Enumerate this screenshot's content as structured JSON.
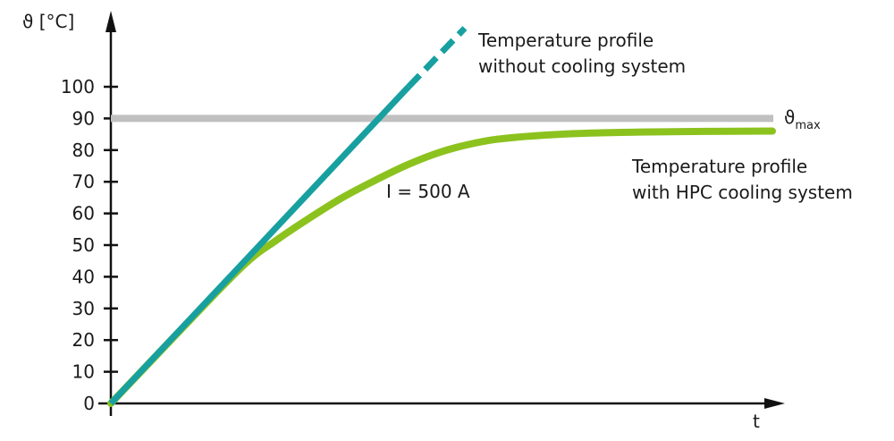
{
  "chart_data": {
    "type": "line",
    "title": "",
    "ylabel": "ϑ [°C]",
    "xlabel": "t",
    "ylim": [
      0,
      100
    ],
    "yticks": [
      "0",
      "10",
      "20",
      "30",
      "40",
      "50",
      "60",
      "70",
      "80",
      "90",
      "100"
    ],
    "xlim": [
      0,
      100
    ],
    "grid": false,
    "threshold": {
      "value": 90,
      "label_main": "ϑ",
      "label_sub": "max",
      "color": "#c0c0c0"
    },
    "annotation": "I = 500 A",
    "series": [
      {
        "name": "Temperature profile without cooling system",
        "label_lines": [
          "Temperature profile",
          "without cooling system"
        ],
        "color": "#18a0a0",
        "solid_x": [
          0,
          45
        ],
        "solid_y": [
          0,
          100
        ],
        "dashed_x": [
          45,
          53.5
        ],
        "dashed_y": [
          100,
          118.5
        ]
      },
      {
        "name": "Temperature profile with HPC cooling system",
        "label_lines": [
          "Temperature profile",
          "with HPC cooling system"
        ],
        "color": "#8cc21e",
        "x": [
          0,
          10,
          20,
          25,
          30,
          35,
          40,
          45,
          50,
          55,
          60,
          70,
          80,
          90,
          100
        ],
        "y": [
          0,
          22,
          43.5,
          51.5,
          58.5,
          65,
          70.5,
          75.5,
          79.5,
          82.2,
          83.8,
          85.2,
          85.7,
          85.9,
          86
        ]
      }
    ]
  }
}
